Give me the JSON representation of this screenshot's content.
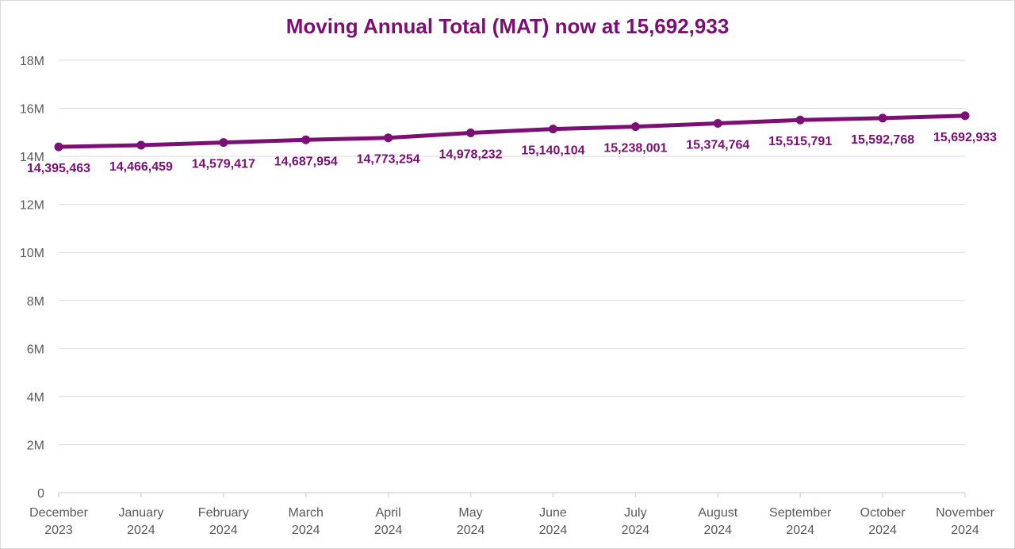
{
  "chart_data": {
    "type": "line",
    "title": "Moving Annual Total (MAT) now at 15,692,933",
    "xlabel": "",
    "ylabel": "",
    "categories": [
      [
        "December",
        "2023"
      ],
      [
        "January",
        "2024"
      ],
      [
        "February",
        "2024"
      ],
      [
        "March",
        "2024"
      ],
      [
        "April",
        "2024"
      ],
      [
        "May",
        "2024"
      ],
      [
        "June",
        "2024"
      ],
      [
        "July",
        "2024"
      ],
      [
        "August",
        "2024"
      ],
      [
        "September",
        "2024"
      ],
      [
        "October",
        "2024"
      ],
      [
        "November",
        "2024"
      ]
    ],
    "series": [
      {
        "values": [
          14395463,
          14466459,
          14579417,
          14687954,
          14773254,
          14978232,
          15140104,
          15238001,
          15374764,
          15515791,
          15592768,
          15692933
        ],
        "data_labels": [
          "14,395,463",
          "14,466,459",
          "14,579,417",
          "14,687,954",
          "14,773,254",
          "14,978,232",
          "15,140,104",
          "15,238,001",
          "15,374,764",
          "15,515,791",
          "15,592,768",
          "15,692,933"
        ],
        "color": "#7b0f73"
      }
    ],
    "ylim": [
      0,
      18000000
    ],
    "yticks": [
      0,
      2000000,
      4000000,
      6000000,
      8000000,
      10000000,
      12000000,
      14000000,
      16000000,
      18000000
    ],
    "ytick_labels": [
      "0",
      "2M",
      "4M",
      "6M",
      "8M",
      "10M",
      "12M",
      "14M",
      "16M",
      "18M"
    ],
    "grid": true,
    "legend": "none",
    "colors": {
      "line": "#7b0f73",
      "grid": "#d9d9d9",
      "axis_text": "#595959"
    }
  }
}
